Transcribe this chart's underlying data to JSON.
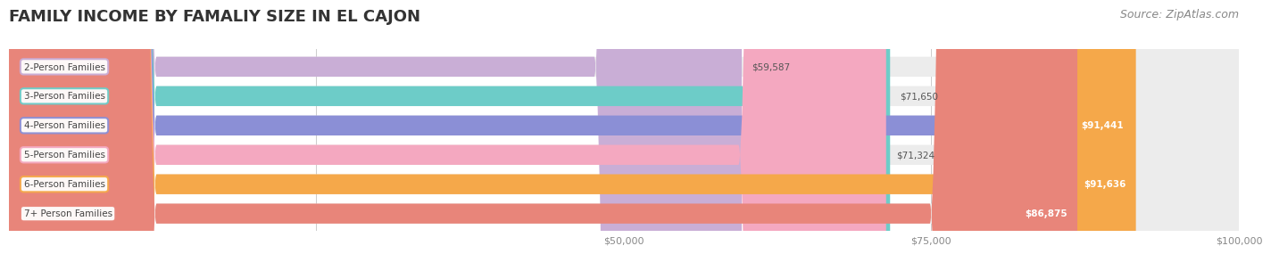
{
  "title": "FAMILY INCOME BY FAMALIY SIZE IN EL CAJON",
  "source": "Source: ZipAtlas.com",
  "categories": [
    "2-Person Families",
    "3-Person Families",
    "4-Person Families",
    "5-Person Families",
    "6-Person Families",
    "7+ Person Families"
  ],
  "values": [
    59587,
    71650,
    91441,
    71324,
    91636,
    86875
  ],
  "bar_colors": [
    "#c9aed6",
    "#6dccc8",
    "#8b8fd6",
    "#f4a8c0",
    "#f5a84a",
    "#e8857a"
  ],
  "label_colors": [
    "#c9aed6",
    "#6dccc8",
    "#8b8fd6",
    "#f4a8c0",
    "#f5a84a",
    "#e8857a"
  ],
  "value_labels": [
    "$59,587",
    "$71,650",
    "$91,441",
    "$71,324",
    "$91,636",
    "$86,875"
  ],
  "bg_color": "#f5f5f5",
  "bar_bg_color": "#e8e8e8",
  "xlim": [
    0,
    100000
  ],
  "xticks": [
    0,
    25000,
    50000,
    75000,
    100000
  ],
  "xtick_labels": [
    "",
    "",
    "$50,000",
    "$75,000",
    "$100,000"
  ],
  "title_fontsize": 13,
  "source_fontsize": 9
}
